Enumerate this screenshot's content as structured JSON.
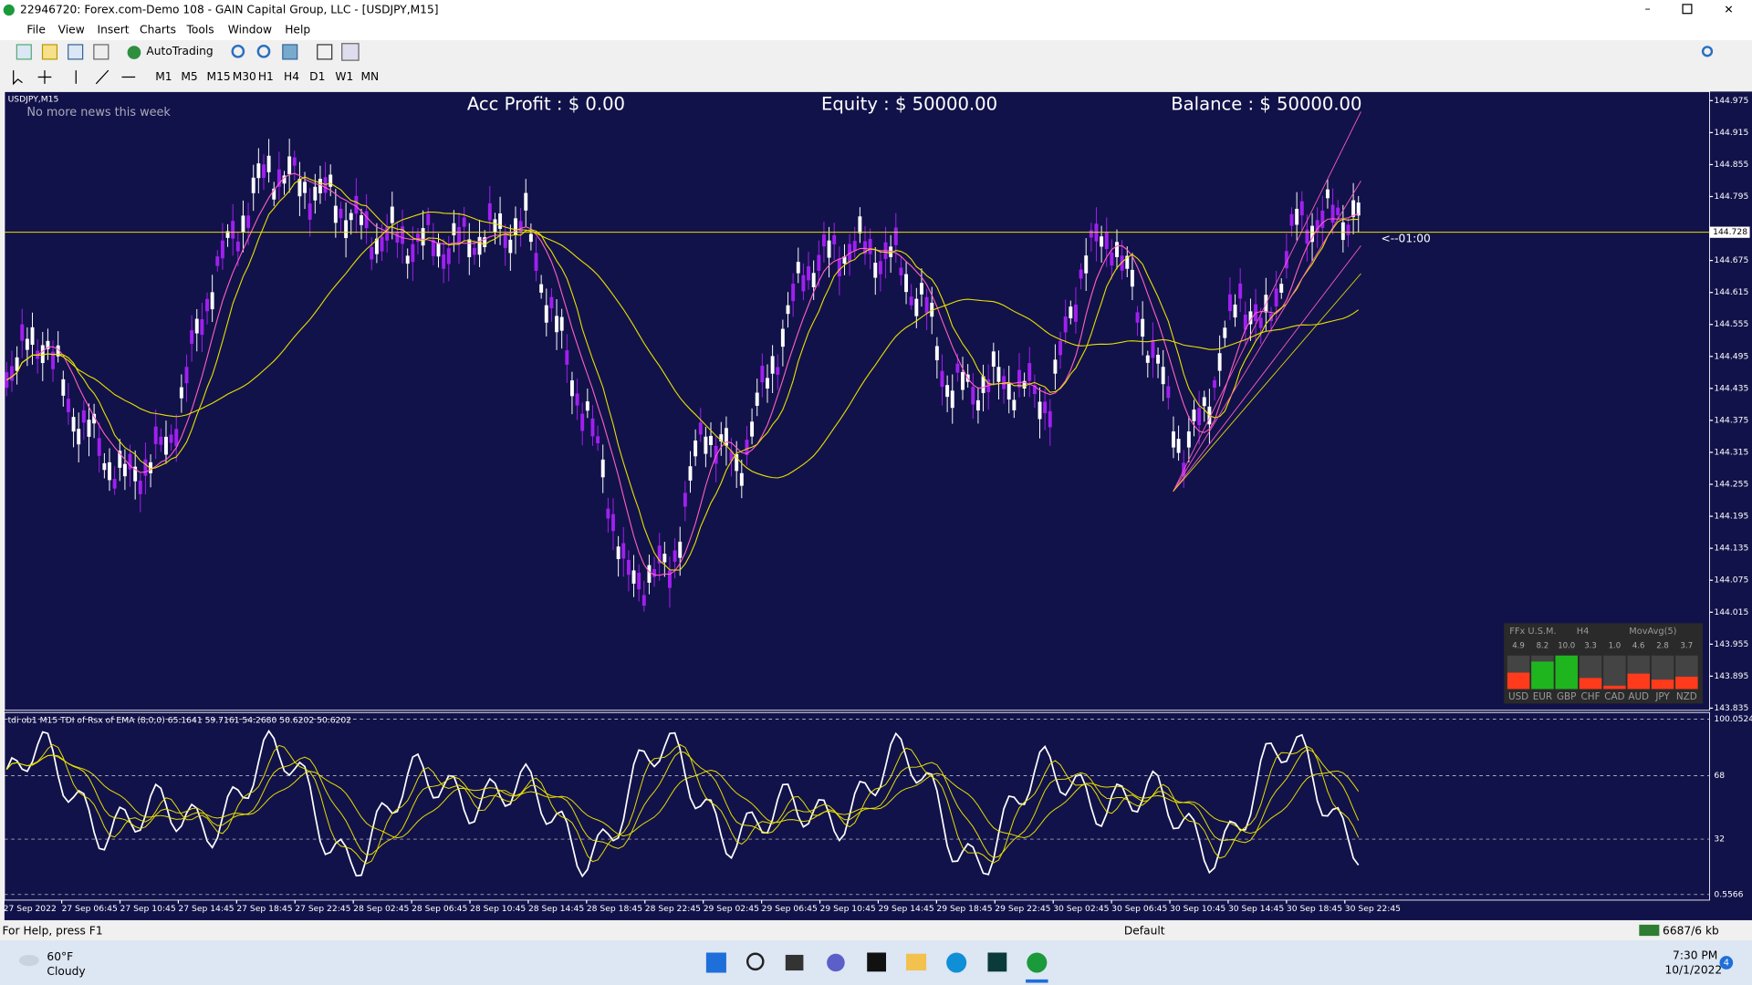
{
  "window": {
    "title": "22946720: Forex.com-Demo 108 - GAIN Capital Group, LLC - [USDJPY,M15]"
  },
  "menu": [
    "File",
    "View",
    "Insert",
    "Charts",
    "Tools",
    "Window",
    "Help"
  ],
  "toolbar": {
    "autotrading": "AutoTrading",
    "timeframes": [
      "M1",
      "M5",
      "M15",
      "M30",
      "H1",
      "H4",
      "D1",
      "W1",
      "MN"
    ]
  },
  "chart": {
    "symbol": "USDJPY,M15",
    "news": "No more news this week",
    "acc_profit": "Acc Profit : $ 0.00",
    "equity": "Equity : $ 50000.00",
    "balance": "Balance : $ 50000.00",
    "countdown": "<--01:00",
    "current_price": 144.728,
    "price_ylim": [
      143.831,
      144.992
    ],
    "price_ticks": [
      144.975,
      144.915,
      144.855,
      144.795,
      144.675,
      144.615,
      144.555,
      144.495,
      144.435,
      144.375,
      144.315,
      144.255,
      144.195,
      144.135,
      144.075,
      144.015,
      143.955,
      143.895,
      143.835
    ],
    "time_labels": [
      "27 Sep 2022",
      "27 Sep 06:45",
      "27 Sep 10:45",
      "27 Sep 14:45",
      "27 Sep 18:45",
      "27 Sep 22:45",
      "28 Sep 02:45",
      "28 Sep 06:45",
      "28 Sep 10:45",
      "28 Sep 14:45",
      "28 Sep 18:45",
      "28 Sep 22:45",
      "29 Sep 02:45",
      "29 Sep 06:45",
      "29 Sep 10:45",
      "29 Sep 14:45",
      "29 Sep 18:45",
      "29 Sep 22:45",
      "30 Sep 02:45",
      "30 Sep 06:45",
      "30 Sep 10:45",
      "30 Sep 14:45",
      "30 Sep 18:45",
      "30 Sep 22:45"
    ]
  },
  "indicator": {
    "label": "tdi ob1 M15 TDI of Rsx of EMA (8,0,0) 65.1641 59.7161 54.2680 50.6202 50.6202",
    "ylim": [
      0.5566,
      100.0524
    ],
    "ticks": [
      100.0524,
      68,
      32,
      0.5566
    ]
  },
  "meter": {
    "title": "FFx U.S.M.",
    "timeframe": "H4",
    "method": "MovAvg(5)",
    "currencies": [
      "USD",
      "EUR",
      "GBP",
      "CHF",
      "CAD",
      "AUD",
      "JPY",
      "NZD"
    ],
    "values": [
      4.9,
      8.2,
      10,
      3.3,
      1,
      4.6,
      2.8,
      3.7
    ],
    "value_labels": [
      "4.9",
      "8.2",
      "10.0",
      "3.3",
      "1.0",
      "4.6",
      "2.8",
      "3.7"
    ],
    "colors": [
      "#ff3b1c",
      "#1fb51f",
      "#1fb51f",
      "#ff3b1c",
      "#ff3b1c",
      "#ff3b1c",
      "#ff3b1c",
      "#ff3b1c"
    ]
  },
  "status": {
    "help": "For Help, press F1",
    "profile": "Default",
    "traffic": "6687/6 kb"
  },
  "taskbar": {
    "temperature": "60°F",
    "weather": "Cloudy",
    "time": "7:30 PM",
    "date": "10/1/2022",
    "notifications": 4
  }
}
